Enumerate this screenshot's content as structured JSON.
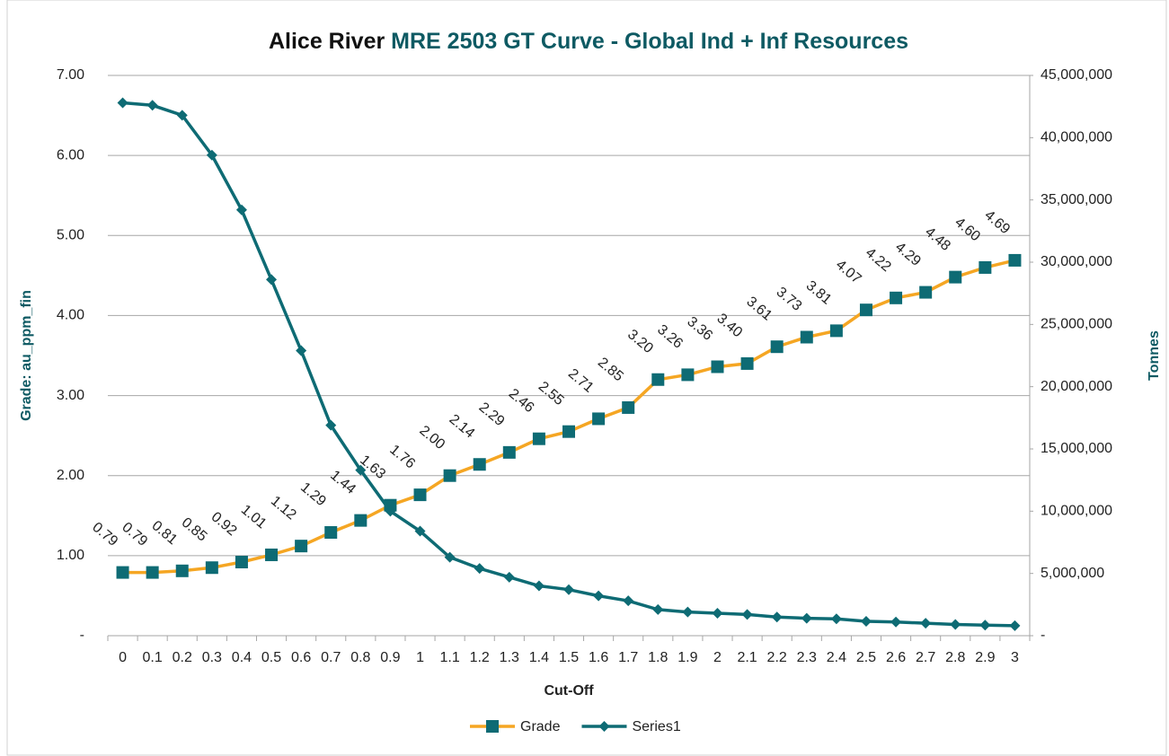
{
  "chart_data": {
    "type": "line",
    "title": [
      "Alice River",
      "MRE 2503 GT Curve - Global Ind + Inf Resources"
    ],
    "x_label": "Cut-Off",
    "y_label": "Grade: au_ppm_fin",
    "y2_label": "Tonnes",
    "categories": [
      "0",
      "0.1",
      "0.2",
      "0.3",
      "0.4",
      "0.5",
      "0.6",
      "0.7",
      "0.8",
      "0.9",
      "1",
      "1.1",
      "1.2",
      "1.3",
      "1.4",
      "1.5",
      "1.6",
      "1.7",
      "1.8",
      "1.9",
      "2",
      "2.1",
      "2.2",
      "2.3",
      "2.4",
      "2.5",
      "2.6",
      "2.7",
      "2.8",
      "2.9",
      "3"
    ],
    "ylim": [
      0,
      7
    ],
    "yticks": [
      {
        "value": 0,
        "label": "-"
      },
      {
        "value": 1,
        "label": "1.00"
      },
      {
        "value": 2,
        "label": "2.00"
      },
      {
        "value": 3,
        "label": "3.00"
      },
      {
        "value": 4,
        "label": "4.00"
      },
      {
        "value": 5,
        "label": "5.00"
      },
      {
        "value": 6,
        "label": "6.00"
      },
      {
        "value": 7,
        "label": "7.00"
      }
    ],
    "y2lim": [
      0,
      45000000
    ],
    "y2ticks": [
      {
        "value": 0,
        "label": "-"
      },
      {
        "value": 5000000,
        "label": "5,000,000"
      },
      {
        "value": 10000000,
        "label": "10,000,000"
      },
      {
        "value": 15000000,
        "label": "15,000,000"
      },
      {
        "value": 20000000,
        "label": "20,000,000"
      },
      {
        "value": 25000000,
        "label": "25,000,000"
      },
      {
        "value": 30000000,
        "label": "30,000,000"
      },
      {
        "value": 35000000,
        "label": "35,000,000"
      },
      {
        "value": 40000000,
        "label": "40,000,000"
      },
      {
        "value": 45000000,
        "label": "45,000,000"
      }
    ],
    "grid": true,
    "legend": "bottom",
    "series": [
      {
        "name": "Grade",
        "color": "#f5a623",
        "marker_color": "#0e6b74",
        "marker": "square",
        "values": [
          0.79,
          0.79,
          0.81,
          0.85,
          0.92,
          1.01,
          1.12,
          1.29,
          1.44,
          1.63,
          1.76,
          2.0,
          2.14,
          2.29,
          2.46,
          2.55,
          2.71,
          2.85,
          3.2,
          3.26,
          3.36,
          3.4,
          3.61,
          3.73,
          3.81,
          4.07,
          4.22,
          4.29,
          4.48,
          4.6,
          4.69
        ],
        "value_labels": [
          "0.79",
          "0.79",
          "0.81",
          "0.85",
          "0.92",
          "1.01",
          "1.12",
          "1.29",
          "1.44",
          "1.63",
          "1.76",
          "2.00",
          "2.14",
          "2.29",
          "2.46",
          "2.55",
          "2.71",
          "2.85",
          "3.20",
          "3.26",
          "3.36",
          "3.40",
          "3.61",
          "3.73",
          "3.81",
          "4.07",
          "4.22",
          "4.29",
          "4.48",
          "4.60",
          "4.69"
        ]
      },
      {
        "name": "Series1",
        "color": "#0e6b74",
        "marker_color": "#0e6b74",
        "marker": "diamond",
        "axis": "y2",
        "values": [
          42800000,
          42600000,
          41800000,
          38600000,
          34200000,
          28600000,
          22900000,
          16900000,
          13300000,
          10000000,
          8400000,
          6300000,
          5400000,
          4700000,
          4000000,
          3700000,
          3200000,
          2800000,
          2100000,
          1900000,
          1800000,
          1700000,
          1500000,
          1400000,
          1350000,
          1150000,
          1100000,
          1000000,
          900000,
          850000,
          800000
        ]
      }
    ]
  }
}
